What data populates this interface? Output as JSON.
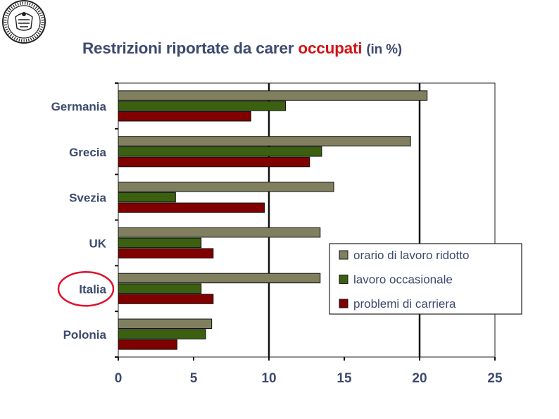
{
  "logo": {
    "name": "university-seal"
  },
  "title": {
    "main": "Restrizioni riportate da carer",
    "accent": "occupati",
    "suffix": "(in %)"
  },
  "colors": {
    "title": "#3c4a6e",
    "accent": "#d21414",
    "circle": "#e0102c"
  },
  "chart_data": {
    "type": "bar",
    "orientation": "horizontal",
    "categories": [
      "Germania",
      "Grecia",
      "Svezia",
      "UK",
      "Italia",
      "Polonia"
    ],
    "highlighted_category": "Italia",
    "series": [
      {
        "name": "orario di lavoro ridotto",
        "color": "#808060",
        "values": [
          20.5,
          19.4,
          14.3,
          13.4,
          13.4,
          6.2
        ]
      },
      {
        "name": "lavoro occasionale",
        "color": "#3a6010",
        "values": [
          11.1,
          13.5,
          3.8,
          5.5,
          5.5,
          5.8
        ]
      },
      {
        "name": "problemi di carriera",
        "color": "#800000",
        "values": [
          8.8,
          12.7,
          9.7,
          6.3,
          6.3,
          3.9
        ]
      }
    ],
    "xlim": [
      0,
      25
    ],
    "xticks": [
      "0",
      "5",
      "10",
      "15",
      "20",
      "25"
    ],
    "grid": {
      "vertical_major": true,
      "values": [
        10,
        20
      ]
    },
    "legend": {
      "position": "bottom-right"
    }
  }
}
